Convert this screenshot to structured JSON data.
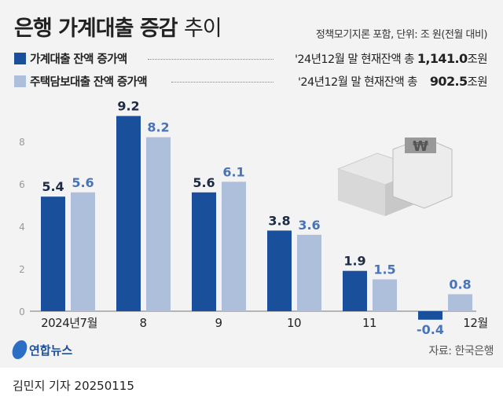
{
  "header": {
    "title_bold": "은행 가계대출 증감",
    "title_light": "추이",
    "note": "정책모기지론 포함, 단위: 조 원(전월 대비)"
  },
  "legend": [
    {
      "label": "가계대출 잔액 증가액",
      "total_prefix": "'24년12월 말 현재잔액 총 ",
      "total_value": "1,141.0",
      "total_unit": "조원",
      "color": "#1a4f9c"
    },
    {
      "label": "주택담보대출 잔액 증가액",
      "total_prefix": "'24년12월 말 현재잔액 총 ",
      "total_value": "902.5",
      "total_unit": "조원",
      "color": "#aebfdc"
    }
  ],
  "chart_data": {
    "type": "bar",
    "categories": [
      "2024년7월",
      "8",
      "9",
      "10",
      "11",
      "12월"
    ],
    "series": [
      {
        "name": "가계대출 잔액 증가액",
        "values": [
          5.4,
          9.2,
          5.6,
          3.8,
          1.9,
          -0.4
        ],
        "color": "#1a4f9c"
      },
      {
        "name": "주택담보대출 잔액 증가액",
        "values": [
          5.6,
          8.2,
          6.1,
          3.6,
          1.5,
          0.8
        ],
        "color": "#aebfdc"
      }
    ],
    "yticks": [
      0,
      2,
      4,
      6,
      8
    ],
    "ylim": [
      -0.6,
      9.5
    ],
    "grid": false
  },
  "footer": {
    "logo": "연합뉴스",
    "source": "자료: 한국은행",
    "byline": "김민지 기자  20250115"
  }
}
